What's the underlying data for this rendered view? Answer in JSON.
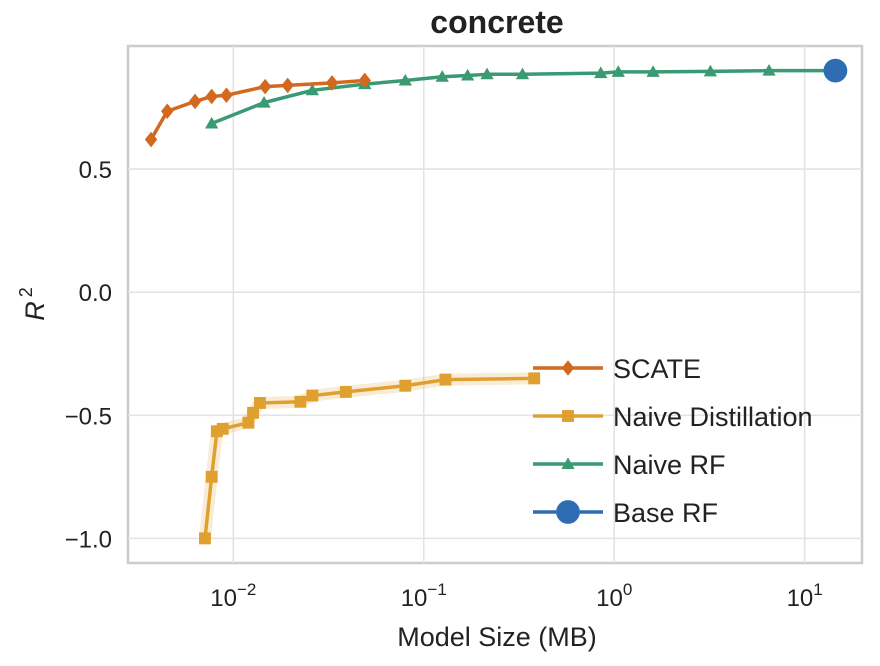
{
  "chart_data": {
    "type": "line",
    "title": "concrete",
    "xlabel": "Model Size (MB)",
    "ylabel": "R",
    "ylabel_superscript": "2",
    "xscale": "log",
    "xlim": [
      0.0028,
      20
    ],
    "ylim": [
      -1.1,
      1.0
    ],
    "xticks": [
      {
        "value": 0.01,
        "base": "10",
        "exp": "−2"
      },
      {
        "value": 0.1,
        "base": "10",
        "exp": "−1"
      },
      {
        "value": 1,
        "base": "10",
        "exp": "0"
      },
      {
        "value": 10,
        "base": "10",
        "exp": "1"
      }
    ],
    "yticks": [
      {
        "value": 0.5,
        "label": "0.5"
      },
      {
        "value": 0.0,
        "label": "0.0"
      },
      {
        "value": -0.5,
        "label": "−0.5"
      },
      {
        "value": -1.0,
        "label": "−1.0"
      }
    ],
    "grid": true,
    "legend_position": "lower-right",
    "series": [
      {
        "name": "SCATE",
        "color": "#d2691e",
        "marker": "diamond",
        "x": [
          0.0037,
          0.0045,
          0.0063,
          0.0077,
          0.0092,
          0.0147,
          0.0193,
          0.033,
          0.049
        ],
        "y": [
          0.62,
          0.735,
          0.775,
          0.795,
          0.8,
          0.835,
          0.84,
          0.85,
          0.86
        ]
      },
      {
        "name": "Naive Distillation",
        "color": "#e0a030",
        "marker": "square",
        "x": [
          0.0071,
          0.0077,
          0.0082,
          0.0088,
          0.012,
          0.0127,
          0.0138,
          0.0225,
          0.026,
          0.039,
          0.08,
          0.13,
          0.38
        ],
        "y": [
          -1.0,
          -0.75,
          -0.565,
          -0.555,
          -0.53,
          -0.49,
          -0.45,
          -0.445,
          -0.42,
          -0.405,
          -0.38,
          -0.355,
          -0.35
        ]
      },
      {
        "name": "Naive RF",
        "color": "#3a9a74",
        "marker": "triangle",
        "x": [
          0.0077,
          0.0145,
          0.026,
          0.049,
          0.08,
          0.125,
          0.17,
          0.215,
          0.33,
          0.85,
          1.05,
          1.6,
          3.2,
          6.5,
          15.0
        ],
        "y": [
          0.685,
          0.77,
          0.82,
          0.845,
          0.86,
          0.875,
          0.88,
          0.885,
          0.885,
          0.89,
          0.895,
          0.895,
          0.897,
          0.9,
          0.9
        ]
      },
      {
        "name": "Base RF",
        "color": "#2e6db4",
        "marker": "circle",
        "x": [
          14.5
        ],
        "y": [
          0.9
        ]
      }
    ]
  }
}
